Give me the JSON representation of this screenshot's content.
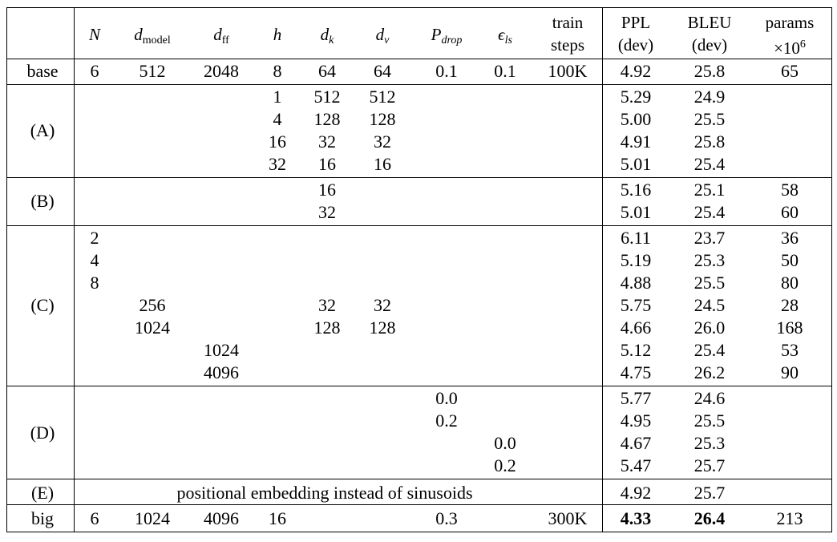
{
  "headers": {
    "N": "N",
    "d_model_base": "d",
    "d_model_sub": "model",
    "d_ff_base": "d",
    "d_ff_sub": "ff",
    "h": "h",
    "d_k_base": "d",
    "d_k_sub": "k",
    "d_v_base": "d",
    "d_v_sub": "v",
    "p_drop_base": "P",
    "p_drop_sub": "drop",
    "eps_base": "ϵ",
    "eps_sub": "ls",
    "train_l1": "train",
    "train_l2": "steps",
    "ppl_l1": "PPL",
    "ppl_l2": "(dev)",
    "bleu_l1": "BLEU",
    "bleu_l2": "(dev)",
    "params_l1": "params",
    "params_l2": "×10",
    "params_exp": "6"
  },
  "groups": {
    "base": "base",
    "A": "(A)",
    "B": "(B)",
    "C": "(C)",
    "D": "(D)",
    "E": "(E)",
    "big": "big"
  },
  "base_row": {
    "N": "6",
    "d_model": "512",
    "d_ff": "2048",
    "h": "8",
    "d_k": "64",
    "d_v": "64",
    "p_drop": "0.1",
    "eps": "0.1",
    "steps": "100K",
    "ppl": "4.92",
    "bleu": "25.8",
    "params": "65"
  },
  "A_rows": [
    {
      "h": "1",
      "d_k": "512",
      "d_v": "512",
      "ppl": "5.29",
      "bleu": "24.9"
    },
    {
      "h": "4",
      "d_k": "128",
      "d_v": "128",
      "ppl": "5.00",
      "bleu": "25.5"
    },
    {
      "h": "16",
      "d_k": "32",
      "d_v": "32",
      "ppl": "4.91",
      "bleu": "25.8"
    },
    {
      "h": "32",
      "d_k": "16",
      "d_v": "16",
      "ppl": "5.01",
      "bleu": "25.4"
    }
  ],
  "B_rows": [
    {
      "d_k": "16",
      "ppl": "5.16",
      "bleu": "25.1",
      "params": "58"
    },
    {
      "d_k": "32",
      "ppl": "5.01",
      "bleu": "25.4",
      "params": "60"
    }
  ],
  "C_rows": [
    {
      "N": "2",
      "ppl": "6.11",
      "bleu": "23.7",
      "params": "36"
    },
    {
      "N": "4",
      "ppl": "5.19",
      "bleu": "25.3",
      "params": "50"
    },
    {
      "N": "8",
      "ppl": "4.88",
      "bleu": "25.5",
      "params": "80"
    },
    {
      "d_model": "256",
      "d_k": "32",
      "d_v": "32",
      "ppl": "5.75",
      "bleu": "24.5",
      "params": "28"
    },
    {
      "d_model": "1024",
      "d_k": "128",
      "d_v": "128",
      "ppl": "4.66",
      "bleu": "26.0",
      "params": "168"
    },
    {
      "d_ff": "1024",
      "ppl": "5.12",
      "bleu": "25.4",
      "params": "53"
    },
    {
      "d_ff": "4096",
      "ppl": "4.75",
      "bleu": "26.2",
      "params": "90"
    }
  ],
  "D_rows": [
    {
      "p_drop": "0.0",
      "ppl": "5.77",
      "bleu": "24.6"
    },
    {
      "p_drop": "0.2",
      "ppl": "4.95",
      "bleu": "25.5"
    },
    {
      "eps": "0.0",
      "ppl": "4.67",
      "bleu": "25.3"
    },
    {
      "eps": "0.2",
      "ppl": "5.47",
      "bleu": "25.7"
    }
  ],
  "E_row": {
    "text": "positional embedding instead of sinusoids",
    "ppl": "4.92",
    "bleu": "25.7"
  },
  "big_row": {
    "N": "6",
    "d_model": "1024",
    "d_ff": "4096",
    "h": "16",
    "p_drop": "0.3",
    "steps": "300K",
    "ppl": "4.33",
    "bleu": "26.4",
    "params": "213"
  }
}
